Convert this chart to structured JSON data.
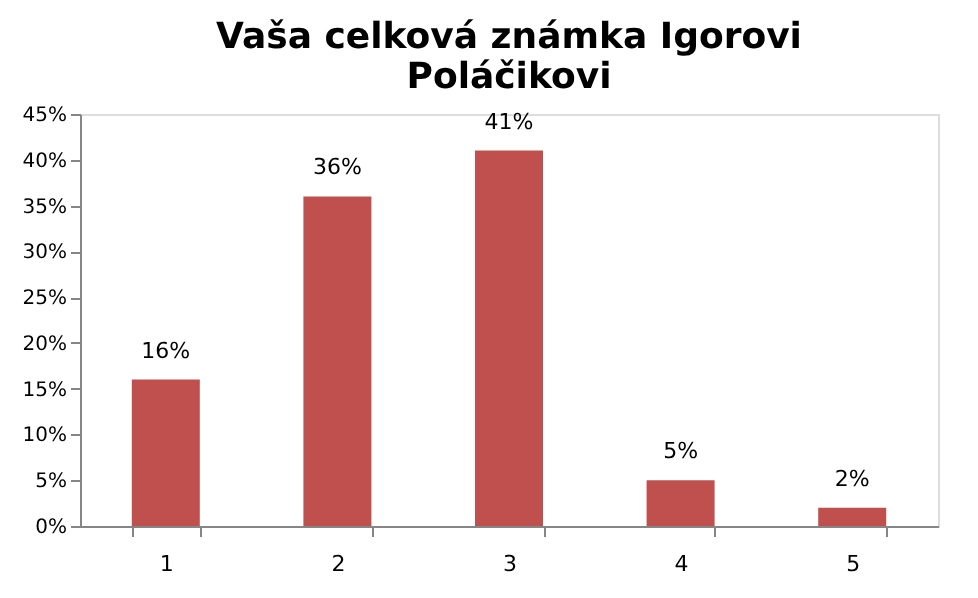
{
  "chart_data": {
    "type": "bar",
    "title": "Vaša celková známka Igorovi Poláčikovi",
    "categories": [
      "1",
      "2",
      "3",
      "4",
      "5"
    ],
    "values": [
      16,
      36,
      41,
      5,
      2
    ],
    "value_labels": [
      "16%",
      "36%",
      "41%",
      "5%",
      "2%"
    ],
    "color": "#c0504d",
    "ylim": [
      0,
      45
    ],
    "yticks": [
      {
        "value": 0,
        "label": "0%"
      },
      {
        "value": 5,
        "label": "5%"
      },
      {
        "value": 10,
        "label": "10%"
      },
      {
        "value": 15,
        "label": "15%"
      },
      {
        "value": 20,
        "label": "20%"
      },
      {
        "value": 25,
        "label": "25%"
      },
      {
        "value": 30,
        "label": "30%"
      },
      {
        "value": 35,
        "label": "35%"
      },
      {
        "value": 40,
        "label": "40%"
      },
      {
        "value": 45,
        "label": "45%"
      }
    ],
    "grid": false
  }
}
